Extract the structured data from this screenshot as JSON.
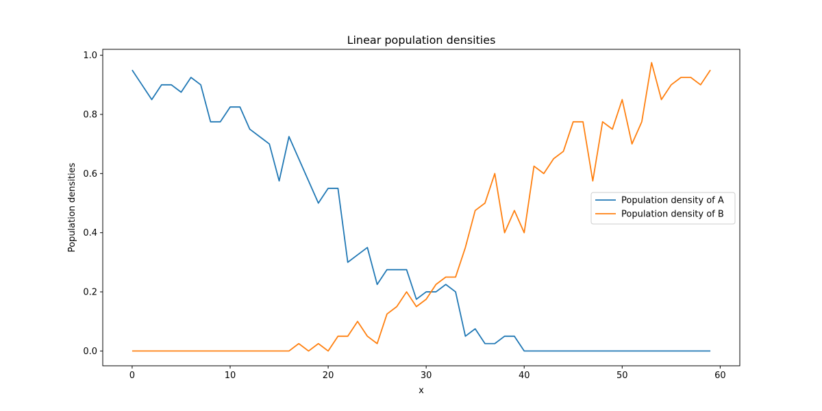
{
  "chart_data": {
    "type": "line",
    "title": "Linear population densities",
    "xlabel": "x",
    "ylabel": "Population densities",
    "xlim": [
      -3,
      62
    ],
    "ylim": [
      -0.05,
      1.02
    ],
    "xticks": [
      0,
      10,
      20,
      30,
      40,
      50,
      60
    ],
    "yticks": [
      0.0,
      0.2,
      0.4,
      0.6,
      0.8,
      1.0
    ],
    "xtick_labels": [
      "0",
      "10",
      "20",
      "30",
      "40",
      "50",
      "60"
    ],
    "ytick_labels": [
      "0.0",
      "0.2",
      "0.4",
      "0.6",
      "0.8",
      "1.0"
    ],
    "grid": false,
    "legend": "center-right",
    "x": [
      0,
      1,
      2,
      3,
      4,
      5,
      6,
      7,
      8,
      9,
      10,
      11,
      12,
      13,
      14,
      15,
      16,
      17,
      18,
      19,
      20,
      21,
      22,
      23,
      24,
      25,
      26,
      27,
      28,
      29,
      30,
      31,
      32,
      33,
      34,
      35,
      36,
      37,
      38,
      39,
      40,
      41,
      42,
      43,
      44,
      45,
      46,
      47,
      48,
      49,
      50,
      51,
      52,
      53,
      54,
      55,
      56,
      57,
      58,
      59
    ],
    "series": [
      {
        "name": "Population density of A",
        "color": "#1f77b4",
        "values": [
          0.95,
          0.9,
          0.85,
          0.9,
          0.9,
          0.875,
          0.925,
          0.9,
          0.775,
          0.775,
          0.825,
          0.825,
          0.75,
          0.725,
          0.7,
          0.575,
          0.725,
          0.65,
          0.575,
          0.5,
          0.55,
          0.55,
          0.3,
          0.325,
          0.35,
          0.225,
          0.275,
          0.275,
          0.275,
          0.175,
          0.2,
          0.2,
          0.225,
          0.2,
          0.05,
          0.075,
          0.025,
          0.025,
          0.05,
          0.05,
          0.0,
          0.0,
          0.0,
          0.0,
          0.0,
          0.0,
          0.0,
          0.0,
          0.0,
          0.0,
          0.0,
          0.0,
          0.0,
          0.0,
          0.0,
          0.0,
          0.0,
          0.0,
          0.0,
          0.0
        ]
      },
      {
        "name": "Population density of B",
        "color": "#ff7f0e",
        "values": [
          0.0,
          0.0,
          0.0,
          0.0,
          0.0,
          0.0,
          0.0,
          0.0,
          0.0,
          0.0,
          0.0,
          0.0,
          0.0,
          0.0,
          0.0,
          0.0,
          0.0,
          0.025,
          0.0,
          0.025,
          0.0,
          0.05,
          0.05,
          0.1,
          0.05,
          0.025,
          0.125,
          0.15,
          0.2,
          0.15,
          0.175,
          0.225,
          0.25,
          0.25,
          0.35,
          0.475,
          0.5,
          0.6,
          0.4,
          0.475,
          0.4,
          0.625,
          0.6,
          0.65,
          0.675,
          0.775,
          0.775,
          0.575,
          0.775,
          0.75,
          0.85,
          0.7,
          0.775,
          0.975,
          0.85,
          0.9,
          0.925,
          0.925,
          0.9,
          0.95
        ]
      }
    ]
  }
}
